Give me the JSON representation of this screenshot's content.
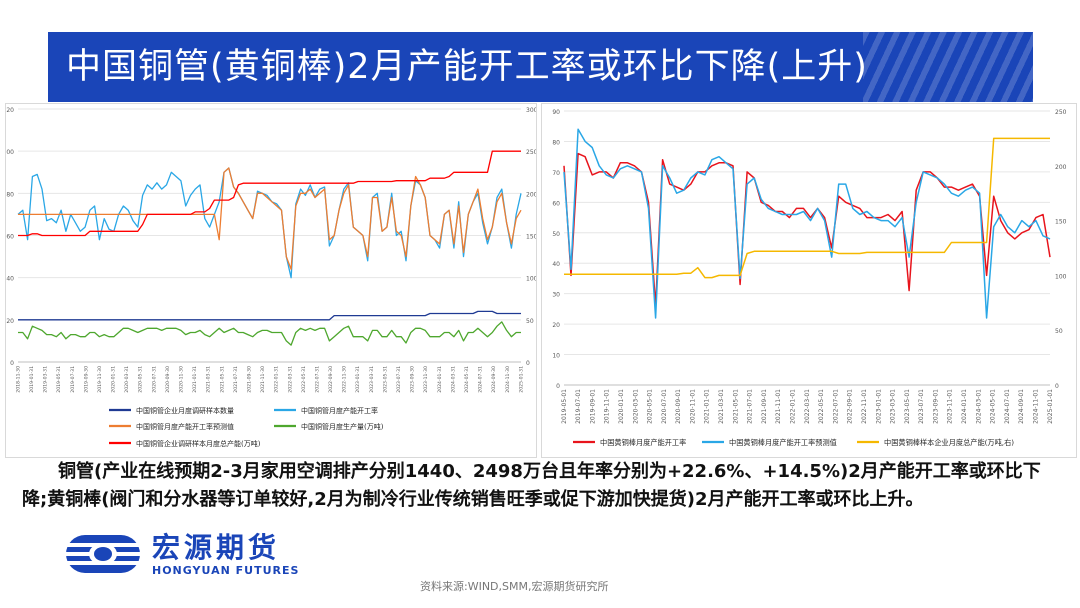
{
  "header": {
    "title": "中国铜管(黄铜棒)2月产能开工率或环比下降(上升)"
  },
  "colors": {
    "title_bar": "#1a45b8",
    "navy": "#1f3a93",
    "sky": "#2aa7e6",
    "orange": "#ed7d31",
    "red": "#ff0000",
    "green": "#4ea72e",
    "crimson": "#e8141c",
    "gold": "#f5b800"
  },
  "chart_data": [
    {
      "type": "line",
      "title": "",
      "x_labels": [
        "2018-11-30",
        "2019-01-31",
        "2019-03-31",
        "2019-05-31",
        "2019-07-31",
        "2019-09-30",
        "2019-11-30",
        "2020-01-31",
        "2020-03-31",
        "2020-05-31",
        "2020-07-31",
        "2020-09-30",
        "2020-11-30",
        "2021-01-31",
        "2021-03-31",
        "2021-05-31",
        "2021-07-31",
        "2021-09-30",
        "2021-11-30",
        "2022-01-31",
        "2022-03-31",
        "2022-05-31",
        "2022-07-31",
        "2022-09-30",
        "2022-11-30",
        "2023-01-31",
        "2023-03-31",
        "2023-05-31",
        "2023-07-31",
        "2023-09-30",
        "2023-11-30",
        "2024-01-31",
        "2024-03-31",
        "2024-05-31",
        "2024-07-31",
        "2024-09-30",
        "2024-11-30",
        "2025-01-31"
      ],
      "y_left_ticks": [
        "0",
        "20",
        "40",
        "60",
        "80",
        "100",
        "120"
      ],
      "y_right_ticks": [
        "0",
        "50",
        "100",
        "150",
        "200",
        "250",
        "300"
      ],
      "ylim_left": [
        0,
        120
      ],
      "ylim_right": [
        0,
        300
      ],
      "series": [
        {
          "name": "中国铜管企业月度调研样本数量",
          "axis": "left",
          "color": "#1f3a93",
          "values": [
            20,
            20,
            20,
            20,
            20,
            20,
            20,
            20,
            20,
            20,
            20,
            20,
            20,
            20,
            20,
            20,
            20,
            20,
            20,
            20,
            20,
            20,
            20,
            20,
            20,
            20,
            20,
            20,
            20,
            20,
            20,
            20,
            20,
            20,
            20,
            20,
            20,
            20,
            20,
            20,
            20,
            20,
            20,
            20,
            20,
            20,
            20,
            20,
            20,
            20,
            20,
            20,
            20,
            20,
            20,
            20,
            20,
            20,
            20,
            20,
            20,
            20,
            20,
            20,
            20,
            20,
            22,
            22,
            22,
            22,
            22,
            22,
            22,
            22,
            22,
            22,
            22,
            22,
            22,
            22,
            22,
            22,
            22,
            22,
            22,
            22,
            23,
            23,
            23,
            23,
            23,
            23,
            23,
            23,
            23,
            23,
            24,
            24,
            24,
            24,
            23,
            23,
            23,
            23,
            23,
            23
          ]
        },
        {
          "name": "中国铜管月度产能开工率",
          "axis": "left",
          "color": "#2aa7e6",
          "values": [
            70,
            72,
            58,
            88,
            89,
            82,
            67,
            68,
            66,
            72,
            62,
            70,
            66,
            62,
            64,
            72,
            74,
            58,
            68,
            63,
            62,
            70,
            74,
            72,
            67,
            64,
            79,
            84,
            82,
            85,
            82,
            84,
            90,
            88,
            86,
            74,
            79,
            82,
            84,
            68,
            64,
            70,
            76,
            90,
            92,
            83,
            80,
            76,
            72,
            68,
            81,
            80,
            79,
            76,
            75,
            72,
            50,
            40,
            75,
            82,
            79,
            84,
            78,
            82,
            83,
            55,
            60,
            72,
            82,
            85,
            64,
            62,
            60,
            48,
            78,
            80,
            62,
            64,
            80,
            60,
            62,
            48,
            74,
            86,
            84,
            78,
            60,
            58,
            54,
            70,
            72,
            54,
            76,
            50,
            70,
            76,
            80,
            66,
            56,
            64,
            78,
            82,
            66,
            54,
            70,
            80
          ]
        },
        {
          "name": "中国铜管月度产能开工率预测值",
          "axis": "left",
          "color": "#ed7d31",
          "values": [
            70,
            70,
            70,
            70,
            70,
            70,
            70,
            70,
            70,
            70,
            70,
            70,
            70,
            70,
            70,
            70,
            70,
            70,
            70,
            70,
            70,
            70,
            70,
            70,
            70,
            70,
            70,
            70,
            70,
            70,
            70,
            70,
            70,
            70,
            70,
            70,
            70,
            70,
            70,
            70,
            70,
            70,
            58,
            90,
            92,
            83,
            80,
            76,
            72,
            68,
            80,
            80,
            78,
            76,
            74,
            72,
            50,
            44,
            74,
            80,
            80,
            82,
            78,
            80,
            82,
            58,
            60,
            72,
            80,
            84,
            64,
            62,
            60,
            50,
            78,
            78,
            62,
            64,
            78,
            62,
            60,
            50,
            74,
            88,
            84,
            78,
            60,
            58,
            56,
            70,
            72,
            56,
            74,
            52,
            70,
            76,
            82,
            68,
            58,
            64,
            76,
            80,
            66,
            56,
            68,
            72
          ]
        },
        {
          "name": "中国铜管月度生产量(万吨)",
          "axis": "left",
          "color": "#4ea72e",
          "values": [
            14,
            14,
            11,
            17,
            16,
            15,
            13,
            13,
            12,
            14,
            11,
            13,
            13,
            12,
            12,
            14,
            14,
            12,
            13,
            12,
            12,
            14,
            16,
            16,
            15,
            14,
            15,
            16,
            16,
            16,
            15,
            16,
            16,
            16,
            15,
            13,
            14,
            14,
            15,
            13,
            12,
            14,
            16,
            14,
            15,
            16,
            14,
            14,
            13,
            12,
            14,
            15,
            15,
            14,
            14,
            14,
            10,
            8,
            14,
            16,
            15,
            16,
            15,
            16,
            16,
            10,
            12,
            14,
            16,
            17,
            12,
            12,
            12,
            10,
            15,
            15,
            12,
            12,
            15,
            12,
            12,
            9,
            14,
            16,
            16,
            15,
            12,
            12,
            12,
            14,
            14,
            12,
            15,
            10,
            14,
            14,
            16,
            14,
            12,
            14,
            17,
            19,
            15,
            12,
            14,
            14
          ]
        },
        {
          "name": "中国铜管企业调研样本月度总产能(万吨)",
          "axis": "right",
          "color": "#ff0000",
          "values": [
            150,
            150,
            150,
            152,
            152,
            150,
            150,
            150,
            150,
            150,
            150,
            150,
            150,
            150,
            150,
            155,
            155,
            155,
            155,
            155,
            155,
            155,
            155,
            155,
            155,
            155,
            163,
            175,
            175,
            175,
            175,
            175,
            175,
            175,
            175,
            175,
            175,
            178,
            178,
            178,
            182,
            192,
            192,
            192,
            192,
            195,
            210,
            212,
            212,
            212,
            212,
            212,
            212,
            212,
            212,
            212,
            212,
            212,
            212,
            212,
            212,
            212,
            212,
            212,
            212,
            212,
            212,
            212,
            212,
            212,
            212,
            214,
            214,
            214,
            214,
            214,
            214,
            214,
            214,
            215,
            215,
            215,
            215,
            215,
            215,
            215,
            218,
            218,
            218,
            218,
            220,
            225,
            225,
            225,
            225,
            225,
            225,
            225,
            225,
            250,
            250,
            250,
            250,
            250,
            250,
            250
          ]
        }
      ]
    },
    {
      "type": "line",
      "title": "",
      "x_labels": [
        "2019-05-01",
        "2019-07-01",
        "2019-09-01",
        "2019-11-01",
        "2020-01-01",
        "2020-03-01",
        "2020-05-01",
        "2020-07-01",
        "2020-09-01",
        "2020-11-01",
        "2021-01-01",
        "2021-03-01",
        "2021-05-01",
        "2021-07-01",
        "2021-09-01",
        "2021-11-01",
        "2022-01-01",
        "2022-03-01",
        "2022-05-01",
        "2022-07-01",
        "2022-09-01",
        "2022-11-01",
        "2023-01-01",
        "2023-03-01",
        "2023-05-01",
        "2023-07-01",
        "2023-09-01",
        "2023-11-01",
        "2024-01-01",
        "2024-03-01",
        "2024-05-01",
        "2024-07-01",
        "2024-09-01",
        "2024-11-01",
        "2025-01-01"
      ],
      "y_left_ticks": [
        "0",
        "10",
        "20",
        "30",
        "40",
        "50",
        "60",
        "70",
        "80",
        "90"
      ],
      "y_right_ticks": [
        "0",
        "50",
        "100",
        "150",
        "200",
        "250"
      ],
      "ylim_left": [
        0,
        90
      ],
      "ylim_right": [
        0,
        250
      ],
      "series": [
        {
          "name": "中国黄铜棒月度产能开工率",
          "axis": "left",
          "color": "#e8141c",
          "values": [
            72,
            36,
            76,
            75,
            69,
            70,
            70,
            68,
            73,
            73,
            72,
            70,
            60,
            26,
            74,
            66,
            65,
            64,
            66,
            70,
            70,
            72,
            73,
            73,
            72,
            33,
            70,
            68,
            60,
            59,
            57,
            57,
            55,
            58,
            58,
            55,
            58,
            55,
            45,
            62,
            60,
            59,
            58,
            55,
            55,
            55,
            56,
            54,
            57,
            31,
            64,
            70,
            70,
            68,
            65,
            65,
            64,
            65,
            66,
            62,
            36,
            62,
            54,
            50,
            48,
            50,
            51,
            55,
            56,
            42
          ]
        },
        {
          "name": "中国黄铜棒月度产能开工率预测值",
          "axis": "left",
          "color": "#2aa7e6",
          "values": [
            70,
            38,
            84,
            80,
            78,
            72,
            69,
            68,
            71,
            72,
            71,
            70,
            58,
            22,
            72,
            68,
            63,
            64,
            68,
            70,
            69,
            74,
            75,
            73,
            71,
            35,
            66,
            68,
            61,
            58,
            57,
            56,
            56,
            56,
            57,
            54,
            58,
            54,
            42,
            66,
            66,
            58,
            56,
            57,
            55,
            54,
            54,
            52,
            55,
            42,
            60,
            70,
            69,
            68,
            66,
            63,
            62,
            64,
            65,
            63,
            22,
            52,
            56,
            52,
            50,
            54,
            52,
            54,
            49,
            48
          ]
        },
        {
          "name": "中国黄铜棒样本企业月度总产能(万吨,右)",
          "axis": "right",
          "color": "#f5b800",
          "values": [
            101,
            101,
            101,
            101,
            101,
            101,
            101,
            101,
            101,
            101,
            101,
            101,
            101,
            101,
            101,
            101,
            101,
            102,
            102,
            107,
            98,
            98,
            100,
            100,
            100,
            100,
            120,
            122,
            122,
            122,
            122,
            122,
            122,
            122,
            122,
            122,
            122,
            122,
            122,
            120,
            120,
            120,
            120,
            121,
            121,
            121,
            121,
            121,
            121,
            121,
            121,
            121,
            121,
            121,
            121,
            130,
            130,
            130,
            130,
            130,
            130,
            225,
            225,
            225,
            225,
            225,
            225,
            225,
            225,
            225
          ]
        }
      ]
    }
  ],
  "legend_left": [
    "中国铜管企业月度调研样本数量",
    "中国铜管月度产能开工率",
    "中国铜管月度产能开工率预测值",
    "中国铜管月度生产量(万吨)",
    "中国铜管企业调研样本月度总产能(万吨)"
  ],
  "legend_right": [
    "中国黄铜棒月度产能开工率",
    "中国黄铜棒月度产能开工率预测值",
    "中国黄铜棒样本企业月度总产能(万吨,右)"
  ],
  "description": "铜管(产业在线预期2-3月家用空调排产分别1440、2498万台且年率分别为+22.6%、+14.5%)2月产能开工率或环比下降;黄铜棒(阀门和分水器等订单较好,2月为制冷行业传统销售旺季或促下游加快提货)2月产能开工率或环比上升。",
  "logo": {
    "cn": "宏源期货",
    "en": "HONGYUAN FUTURES"
  },
  "source": "资料来源:WIND,SMM,宏源期货研究所"
}
